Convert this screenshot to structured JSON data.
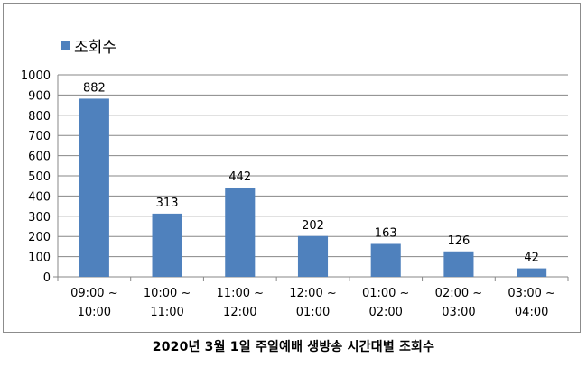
{
  "chart_data": {
    "type": "bar",
    "categories": [
      [
        "09:00 ~",
        "10:00"
      ],
      [
        "10:00 ~",
        "11:00"
      ],
      [
        "11:00 ~",
        "12:00"
      ],
      [
        "12:00 ~",
        "01:00"
      ],
      [
        "01:00 ~",
        "02:00"
      ],
      [
        "02:00 ~",
        "03:00"
      ],
      [
        "03:00 ~",
        "04:00"
      ]
    ],
    "series": [
      {
        "name": "조회수",
        "values": [
          882,
          313,
          442,
          202,
          163,
          126,
          42
        ]
      }
    ],
    "ylim": [
      0,
      1000
    ],
    "yticks": [
      0,
      100,
      200,
      300,
      400,
      500,
      600,
      700,
      800,
      900,
      1000
    ],
    "grid": true,
    "legend_position": "top-left",
    "bar_color": "#4f81bd",
    "grid_color": "#878787"
  },
  "caption": "2020년 3월 1일 주일예배 생방송 시간대별 조회수"
}
